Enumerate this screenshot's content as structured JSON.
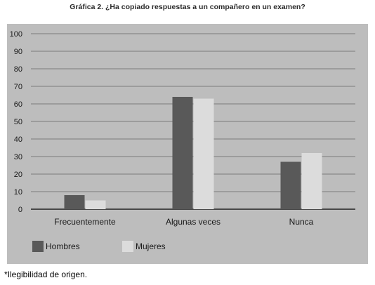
{
  "chart_data": {
    "type": "bar",
    "title": "Gráfica 2. ¿Ha copiado respuestas a un compañero en un examen?",
    "categories": [
      "Frecuentemente",
      "Algunas veces",
      "Nunca"
    ],
    "series": [
      {
        "name": "Hombres",
        "values": [
          8,
          64,
          27
        ],
        "color": "#595959"
      },
      {
        "name": "Mujeres",
        "values": [
          5,
          63,
          32
        ],
        "color": "#dcdcdc"
      }
    ],
    "yticks": [
      "0",
      "10",
      "20",
      "30",
      "40",
      "50",
      "60",
      "70",
      "80",
      "90",
      "100"
    ],
    "ylim": [
      0,
      100
    ],
    "xlabel": "",
    "ylabel": "",
    "grid": true,
    "legend_position": "bottom-left",
    "colors": {
      "panel_bg": "#bdbdbd",
      "grid": "#7a7a7a",
      "text": "#1a1a1a"
    }
  },
  "footnote": "*Ilegibilidad de origen."
}
